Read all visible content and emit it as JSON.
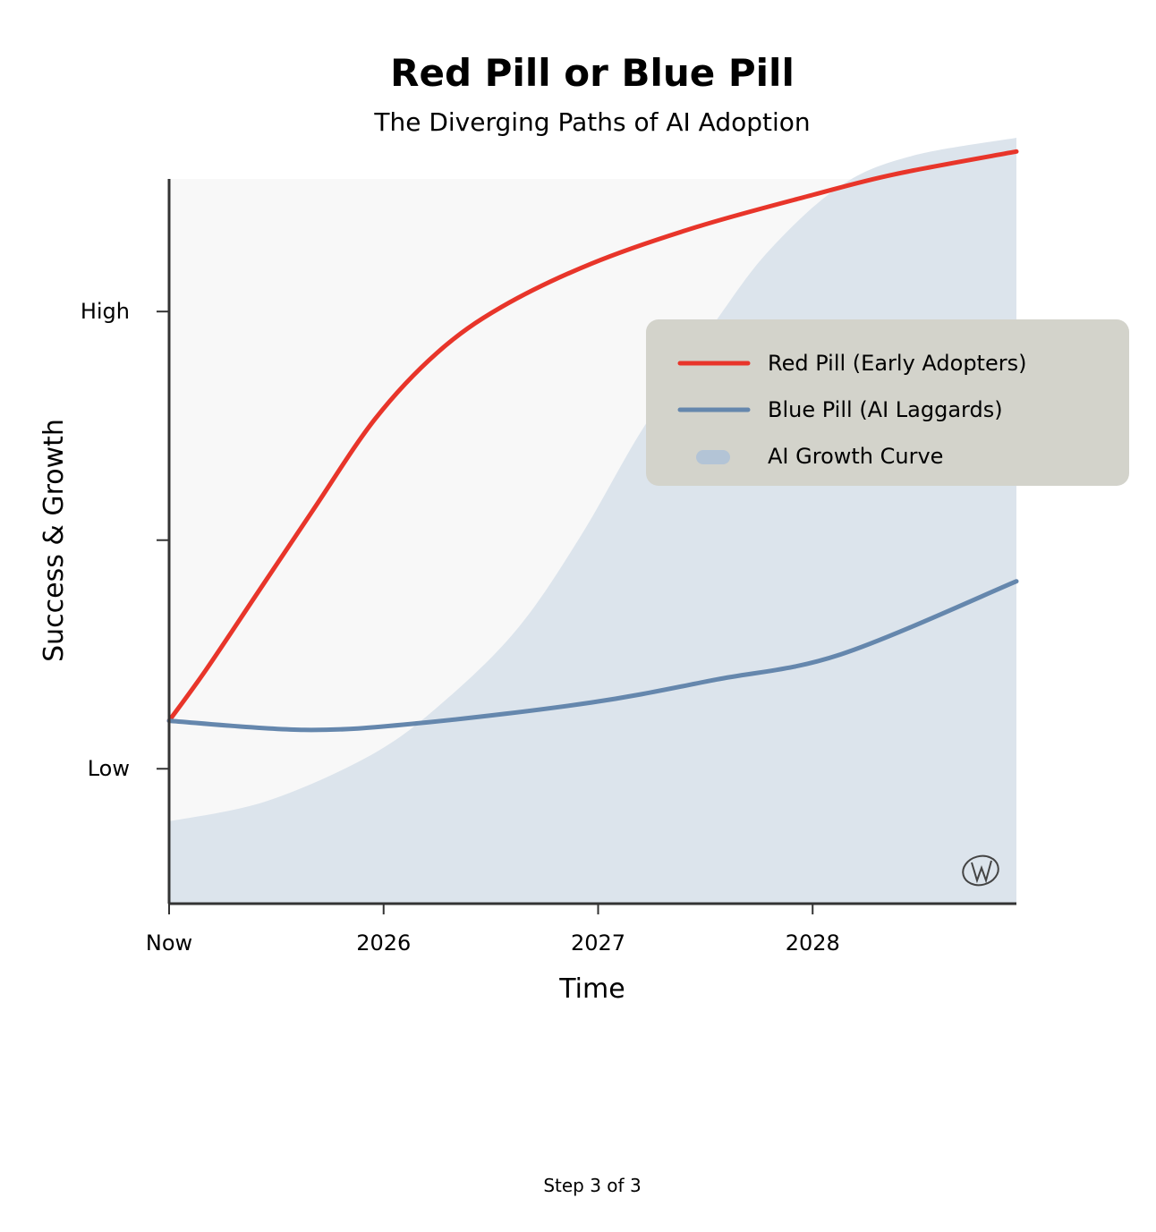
{
  "chart_data": {
    "type": "line",
    "title": "Red Pill or Blue Pill",
    "subtitle": "The Diverging Paths of AI Adoption",
    "xlabel": "Time",
    "ylabel": "Success & Growth",
    "xlim": [
      2025,
      2028.95
    ],
    "ylim": [
      0.41,
      3.58
    ],
    "xticks": [
      {
        "value": 2025,
        "label": "Now"
      },
      {
        "value": 2026,
        "label": "2026"
      },
      {
        "value": 2027,
        "label": "2027"
      },
      {
        "value": 2028,
        "label": "2028"
      }
    ],
    "yticks": [
      {
        "value": 1,
        "label": "Low"
      },
      {
        "value": 2,
        "label": ""
      },
      {
        "value": 3,
        "label": "High"
      }
    ],
    "grid": false,
    "legend_placement": "right",
    "series": [
      {
        "name": "Red Pill (Early Adopters)",
        "kind": "line",
        "color": "#e8352a",
        "x": [
          2025.0,
          2025.17,
          2025.42,
          2025.67,
          2025.96,
          2026.25,
          2026.55,
          2026.97,
          2027.46,
          2028.0,
          2028.38,
          2028.95
        ],
        "y": [
          1.21,
          1.43,
          1.78,
          2.13,
          2.53,
          2.82,
          3.02,
          3.21,
          3.37,
          3.51,
          3.6,
          3.7
        ]
      },
      {
        "name": "Blue Pill (AI Laggards)",
        "kind": "line",
        "color": "#6587ad",
        "x": [
          2025.0,
          2025.63,
          2026.17,
          2026.97,
          2027.55,
          2028.13,
          2028.95
        ],
        "y": [
          1.21,
          1.17,
          1.2,
          1.29,
          1.39,
          1.5,
          1.82
        ]
      },
      {
        "name": "AI Growth Curve",
        "kind": "area",
        "color": "#dce4ec",
        "legend_color": "#b3c4d6",
        "x": [
          2025.0,
          2025.46,
          2025.96,
          2026.3,
          2026.63,
          2026.92,
          2027.21,
          2027.55,
          2027.8,
          2028.13,
          2028.46,
          2028.95
        ],
        "y": [
          0.77,
          0.86,
          1.07,
          1.31,
          1.62,
          2.02,
          2.49,
          2.96,
          3.27,
          3.55,
          3.68,
          3.76
        ]
      }
    ],
    "plot_background": "#f8f8f8",
    "legend_background": "#d3d3cb",
    "watermark": "W"
  },
  "footer": {
    "step_text": "Step 3 of 3"
  }
}
